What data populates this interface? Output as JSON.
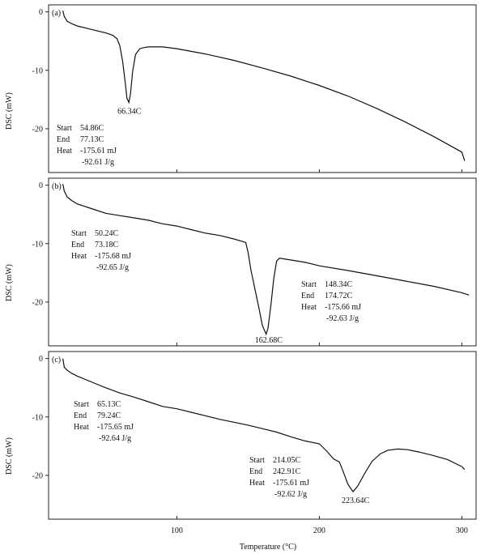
{
  "figure": {
    "x_label": "Temperature (°C)",
    "x_ticks": [
      100,
      200,
      300
    ]
  },
  "chart_data": [
    {
      "type": "line",
      "panel_label": "(a)",
      "ylabel": "DSC (mW)",
      "xlim": [
        10,
        310
      ],
      "ylim": [
        -27.5,
        1.2
      ],
      "y_ticks": [
        0,
        -10,
        -20
      ],
      "series": [
        {
          "x": [
            20,
            21,
            23,
            26,
            30,
            40,
            50,
            55,
            58,
            60,
            62,
            64,
            65,
            66.34,
            67.5,
            69,
            71,
            74,
            77.13,
            80,
            90,
            100,
            120,
            140,
            160,
            180,
            200,
            220,
            240,
            260,
            280,
            300,
            302
          ],
          "y": [
            0.2,
            -0.8,
            -1.6,
            -2.0,
            -2.4,
            -3.0,
            -3.6,
            -4.0,
            -4.6,
            -5.8,
            -8.5,
            -12.5,
            -14.8,
            -15.5,
            -14.0,
            -10.2,
            -7.3,
            -6.3,
            -6.1,
            -6.0,
            -6.0,
            -6.3,
            -7.2,
            -8.3,
            -9.6,
            -11.0,
            -12.6,
            -14.4,
            -16.5,
            -18.8,
            -21.3,
            -24.0,
            -25.5
          ]
        }
      ],
      "annotations": {
        "peak_label": "66.34C",
        "peak": [
          66.34,
          -15.5
        ],
        "lines": [
          {
            "label": "Start",
            "value": "54.86C"
          },
          {
            "label": "End",
            "value": "77.13C"
          },
          {
            "label": "Heat",
            "value": "-175.61 mJ"
          },
          {
            "label": "",
            "value": "-92.61 J/g"
          }
        ]
      }
    },
    {
      "type": "line",
      "panel_label": "(b)",
      "ylabel": "DSC (mW)",
      "xlim": [
        10,
        310
      ],
      "ylim": [
        -27.5,
        1.2
      ],
      "y_ticks": [
        0,
        -10,
        -20
      ],
      "series": [
        {
          "x": [
            20,
            21,
            23,
            26,
            30,
            40,
            50,
            60,
            70,
            80,
            90,
            100,
            110,
            120,
            130,
            140,
            148.34,
            150,
            152,
            155,
            158,
            160,
            162.68,
            164,
            166,
            168,
            170,
            172,
            174.72,
            180,
            190,
            200,
            220,
            240,
            260,
            280,
            300,
            305
          ],
          "y": [
            0.2,
            -1.0,
            -2.0,
            -2.6,
            -3.2,
            -4.0,
            -4.8,
            -5.2,
            -5.6,
            -6.0,
            -6.6,
            -7.0,
            -7.6,
            -8.2,
            -8.6,
            -9.2,
            -9.8,
            -11.5,
            -14.5,
            -18.0,
            -21.5,
            -24.0,
            -25.5,
            -24.5,
            -20.5,
            -16.0,
            -13.0,
            -12.5,
            -12.6,
            -12.8,
            -13.2,
            -13.8,
            -14.6,
            -15.5,
            -16.4,
            -17.3,
            -18.4,
            -18.8
          ]
        }
      ],
      "annotations": {
        "peak_label": "162.68C",
        "peak": [
          162.68,
          -25.5
        ],
        "lines": [
          {
            "label": "Start",
            "value": "148.34C"
          },
          {
            "label": "End",
            "value": "174.72C"
          },
          {
            "label": "Heat",
            "value": "-175.66 mJ"
          },
          {
            "label": "",
            "value": "-92.63 J/g"
          }
        ],
        "side_lines": [
          {
            "label": "Start",
            "value": "50.24C"
          },
          {
            "label": "End",
            "value": "73.18C"
          },
          {
            "label": "Heat",
            "value": "-175.68 mJ"
          },
          {
            "label": "",
            "value": "-92.65 J/g"
          }
        ]
      }
    },
    {
      "type": "line",
      "panel_label": "(c)",
      "ylabel": "DSC (mW)",
      "xlim": [
        10,
        310
      ],
      "ylim": [
        -27.5,
        1.2
      ],
      "y_ticks": [
        0,
        -10,
        -20
      ],
      "series": [
        {
          "x": [
            20,
            21,
            23,
            26,
            30,
            40,
            50,
            60,
            70,
            80,
            90,
            100,
            110,
            120,
            130,
            140,
            150,
            160,
            170,
            180,
            190,
            200,
            205,
            210,
            214.05,
            217,
            220,
            223.64,
            227,
            232,
            237,
            242.91,
            248,
            255,
            262,
            270,
            280,
            290,
            300,
            302
          ],
          "y": [
            0.0,
            -1.5,
            -2.0,
            -2.5,
            -3.0,
            -4.0,
            -5.0,
            -5.9,
            -6.6,
            -7.4,
            -8.2,
            -8.6,
            -9.2,
            -9.8,
            -10.4,
            -10.9,
            -11.4,
            -12.0,
            -12.6,
            -13.4,
            -14.1,
            -14.6,
            -15.8,
            -17.2,
            -17.7,
            -19.5,
            -21.5,
            -22.8,
            -21.8,
            -19.6,
            -17.6,
            -16.3,
            -15.7,
            -15.5,
            -15.6,
            -16.0,
            -16.6,
            -17.3,
            -18.5,
            -19.0
          ]
        }
      ],
      "annotations": {
        "peak_label": "223.64C",
        "peak": [
          223.64,
          -22.8
        ],
        "lines": [
          {
            "label": "Start",
            "value": "214.05C"
          },
          {
            "label": "End",
            "value": "242.91C"
          },
          {
            "label": "Heat",
            "value": "-175.61 mJ"
          },
          {
            "label": "",
            "value": "-92.62 J/g"
          }
        ],
        "side_lines": [
          {
            "label": "Start",
            "value": "65.13C"
          },
          {
            "label": "End",
            "value": "79.24C"
          },
          {
            "label": "Heat",
            "value": "-175.65 mJ"
          },
          {
            "label": "",
            "value": "-92.64 J/g"
          }
        ]
      }
    }
  ]
}
